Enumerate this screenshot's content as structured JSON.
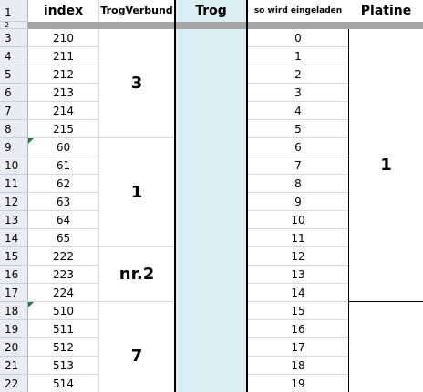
{
  "row_numbers": [
    "1",
    "2",
    "3",
    "4",
    "5",
    "6",
    "7",
    "8",
    "9",
    "10",
    "11",
    "12",
    "13",
    "14",
    "15",
    "16",
    "17",
    "18",
    "19",
    "20",
    "21",
    "22"
  ],
  "headers": {
    "index": "index",
    "trogverbund": "TrogVerbund",
    "trog": "Trog",
    "so_wird": "so wird eingeladen",
    "platine": "Platine"
  },
  "index_values": [
    "210",
    "211",
    "212",
    "213",
    "214",
    "215",
    "60",
    "61",
    "62",
    "63",
    "64",
    "65",
    "222",
    "223",
    "224",
    "510",
    "511",
    "512",
    "513",
    "514"
  ],
  "eingeladen_values": [
    "0",
    "1",
    "2",
    "3",
    "4",
    "5",
    "6",
    "7",
    "8",
    "9",
    "10",
    "11",
    "12",
    "13",
    "14",
    "15",
    "16",
    "17",
    "18",
    "19"
  ],
  "trogverbund_groups": [
    "3",
    "1",
    "nr.2",
    "7"
  ],
  "platine_groups": [
    "1"
  ]
}
